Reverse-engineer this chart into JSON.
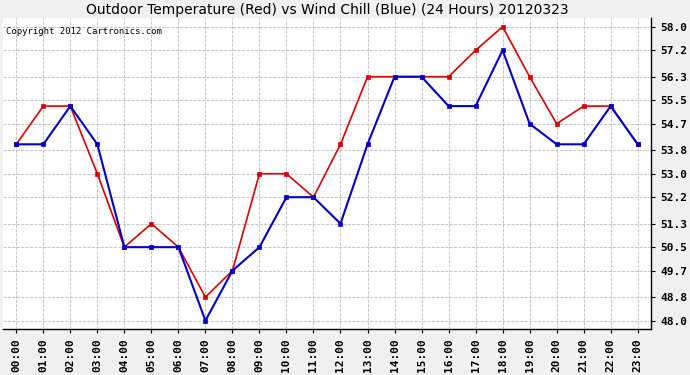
{
  "title": "Outdoor Temperature (Red) vs Wind Chill (Blue) (24 Hours) 20120323",
  "copyright": "Copyright 2012 Cartronics.com",
  "hours": [
    0,
    1,
    2,
    3,
    4,
    5,
    6,
    7,
    8,
    9,
    10,
    11,
    12,
    13,
    14,
    15,
    16,
    17,
    18,
    19,
    20,
    21,
    22,
    23
  ],
  "hour_labels": [
    "00:00",
    "01:00",
    "02:00",
    "03:00",
    "04:00",
    "05:00",
    "06:00",
    "07:00",
    "08:00",
    "09:00",
    "10:00",
    "11:00",
    "12:00",
    "13:00",
    "14:00",
    "15:00",
    "16:00",
    "17:00",
    "18:00",
    "19:00",
    "20:00",
    "21:00",
    "22:00",
    "23:00"
  ],
  "temp_red": [
    54.0,
    55.3,
    55.3,
    53.0,
    50.5,
    51.3,
    50.5,
    48.8,
    49.7,
    53.0,
    53.0,
    52.2,
    54.0,
    56.3,
    56.3,
    56.3,
    56.3,
    57.2,
    58.0,
    56.3,
    54.7,
    55.3,
    55.3,
    54.0
  ],
  "wind_blue": [
    54.0,
    54.0,
    55.3,
    54.0,
    50.5,
    50.5,
    50.5,
    48.0,
    49.7,
    50.5,
    52.2,
    52.2,
    51.3,
    54.0,
    56.3,
    56.3,
    55.3,
    55.3,
    57.2,
    54.7,
    54.0,
    54.0,
    55.3,
    54.0
  ],
  "ylim": [
    47.7,
    58.3
  ],
  "yticks": [
    48.0,
    48.8,
    49.7,
    50.5,
    51.3,
    52.2,
    53.0,
    53.8,
    54.7,
    55.5,
    56.3,
    57.2,
    58.0
  ],
  "red_color": "#dd0000",
  "blue_color": "#0000cc",
  "plot_bg_color": "#ffffff",
  "fig_bg_color": "#f0f0f0",
  "grid_color": "#bbbbbb",
  "title_fontsize": 10,
  "copyright_fontsize": 6.5,
  "tick_fontsize": 8,
  "tick_fontweight": "bold"
}
